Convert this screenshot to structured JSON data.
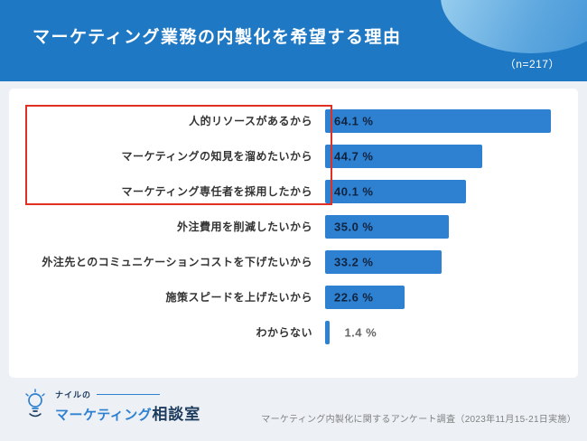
{
  "header": {
    "title": "マーケティング業務の内製化を希望する理由",
    "sample_size": "（n=217）"
  },
  "chart_data": {
    "type": "bar",
    "orientation": "horizontal",
    "title": "マーケティング業務の内製化を希望する理由",
    "sample_size_note": "（n=217）",
    "categories": [
      "人的リソースがあるから",
      "マーケティングの知見を溜めたいから",
      "マーケティング専任者を採用したから",
      "外注費用を削減したいから",
      "外注先とのコミュニケーションコストを下げたいから",
      "施策スピードを上げたいから",
      "わからない"
    ],
    "values": [
      64.1,
      44.7,
      40.1,
      35.0,
      33.2,
      22.6,
      1.4
    ],
    "value_labels": [
      "64.1 %",
      "44.7 %",
      "40.1 %",
      "35.0 %",
      "33.2 %",
      "22.6 %",
      "1.4 %"
    ],
    "unit": "%",
    "xlim": [
      0,
      70
    ],
    "bar_color": "#2e80d0",
    "highlight_range": [
      0,
      2
    ],
    "highlight_border_color": "#e03024",
    "legend": "none",
    "grid": "off"
  },
  "footer": {
    "logo_top": "ナイルの",
    "logo_main": "マーケティング",
    "logo_suffix": "相談室",
    "source": "マーケティング内製化に関するアンケート調査（2023年11月15-21日実施）"
  }
}
